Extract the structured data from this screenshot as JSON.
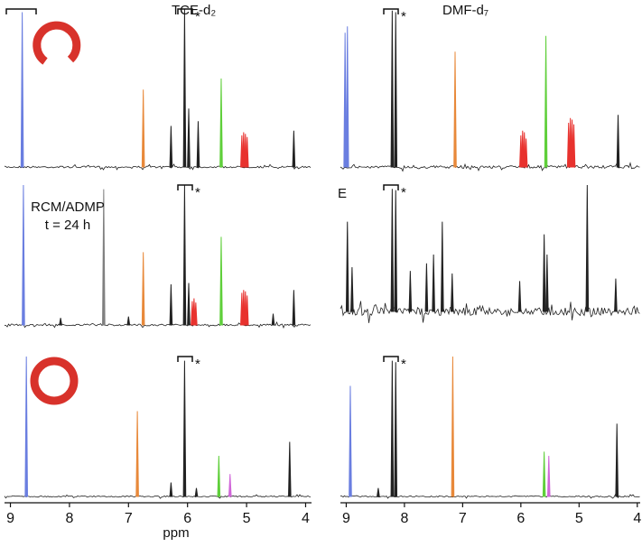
{
  "chart_data": [
    {
      "type": "spectrum",
      "title": "TCE-d₂",
      "annotation": "*",
      "xlim": [
        9.1,
        3.9
      ],
      "ylim": [
        0,
        1
      ],
      "series": [
        {
          "color": "#6a7ee0",
          "x": [
            8.8
          ],
          "values": [
            0.98
          ]
        },
        {
          "color": "#e8893a",
          "x": [
            6.75
          ],
          "values": [
            0.49
          ]
        },
        {
          "color": "#e8322e",
          "x": [
            5.08,
            5.05,
            5.02,
            4.99
          ],
          "values": [
            0.2,
            0.22,
            0.21,
            0.19
          ]
        },
        {
          "color": "#5fcf3a",
          "x": [
            5.43
          ],
          "values": [
            0.56
          ]
        },
        {
          "color": "#222222",
          "x": [
            6.28,
            6.05,
            5.98,
            5.82,
            4.2
          ],
          "values": [
            0.26,
            1.0,
            0.37,
            0.29,
            0.23
          ]
        }
      ]
    },
    {
      "type": "spectrum",
      "title": "DMF-d₇",
      "annotation": "*",
      "xlim": [
        9.1,
        3.95
      ],
      "ylim": [
        0,
        1
      ],
      "series": [
        {
          "color": "#6a7ee0",
          "x": [
            9.02,
            8.98
          ],
          "values": [
            0.85,
            0.89
          ]
        },
        {
          "color": "#222222",
          "x": [
            8.21,
            8.15,
            4.33
          ],
          "values": [
            0.99,
            0.98,
            0.33
          ]
        },
        {
          "color": "#e8893a",
          "x": [
            7.13
          ],
          "values": [
            0.73
          ]
        },
        {
          "color": "#e8322e",
          "x": [
            6.0,
            5.97,
            5.94,
            5.91,
            5.18,
            5.15,
            5.12,
            5.09
          ],
          "values": [
            0.2,
            0.23,
            0.22,
            0.18,
            0.28,
            0.31,
            0.3,
            0.27
          ]
        },
        {
          "color": "#5fcf3a",
          "x": [
            5.57
          ],
          "values": [
            0.83
          ]
        }
      ]
    },
    {
      "type": "spectrum",
      "label_lines": [
        "RCM/ADMP",
        "t = 24 h"
      ],
      "annotation": "*",
      "xlim": [
        9.1,
        3.9
      ],
      "ylim": [
        0,
        1
      ],
      "series": [
        {
          "color": "#6a7ee0",
          "x": [
            8.78
          ],
          "values": [
            1.0
          ]
        },
        {
          "color": "#808080",
          "x": [
            7.42
          ],
          "values": [
            0.97
          ]
        },
        {
          "color": "#e8893a",
          "x": [
            6.75
          ],
          "values": [
            0.52
          ]
        },
        {
          "color": "#e8322e",
          "x": [
            5.92,
            5.89,
            5.86,
            5.08,
            5.05,
            5.02,
            4.99
          ],
          "values": [
            0.17,
            0.19,
            0.16,
            0.23,
            0.25,
            0.24,
            0.21
          ]
        },
        {
          "color": "#5fcf3a",
          "x": [
            5.43
          ],
          "values": [
            0.63
          ]
        },
        {
          "color": "#222222",
          "x": [
            8.15,
            7.0,
            6.28,
            6.05,
            5.98,
            4.55,
            4.2
          ],
          "values": [
            0.05,
            0.06,
            0.29,
            1.0,
            0.3,
            0.08,
            0.25
          ]
        }
      ]
    },
    {
      "type": "spectrum",
      "title": "E",
      "annotation": "*",
      "xlim": [
        9.1,
        3.95
      ],
      "ylim": [
        0,
        1
      ],
      "series": [
        {
          "color": "#222222",
          "x": [
            8.98,
            8.9,
            8.21,
            8.15,
            7.9,
            7.62,
            7.5,
            7.35,
            7.18,
            6.02,
            5.6,
            5.55,
            4.86,
            4.37
          ],
          "values": [
            0.71,
            0.35,
            0.97,
            0.96,
            0.32,
            0.38,
            0.45,
            0.71,
            0.3,
            0.24,
            0.61,
            0.45,
            1.0,
            0.26
          ]
        }
      ]
    },
    {
      "type": "spectrum",
      "annotation": "*",
      "xlabel": "ppm",
      "xlim": [
        9.1,
        3.9
      ],
      "ylim": [
        0,
        1
      ],
      "xticks": [
        9,
        8,
        7,
        6,
        5,
        4
      ],
      "series": [
        {
          "color": "#6a7ee0",
          "x": [
            8.73
          ],
          "values": [
            1.0
          ]
        },
        {
          "color": "#e8893a",
          "x": [
            6.85
          ],
          "values": [
            0.61
          ]
        },
        {
          "color": "#5fcf3a",
          "x": [
            5.47
          ],
          "values": [
            0.29
          ]
        },
        {
          "color": "#d066d8",
          "x": [
            5.28
          ],
          "values": [
            0.16
          ]
        },
        {
          "color": "#222222",
          "x": [
            6.28,
            6.05,
            5.85,
            4.27
          ],
          "values": [
            0.1,
            0.97,
            0.06,
            0.39
          ]
        }
      ]
    },
    {
      "type": "spectrum",
      "annotation": "*",
      "xlim": [
        9.1,
        3.95
      ],
      "ylim": [
        0,
        1
      ],
      "xticks": [
        9,
        8,
        7,
        6,
        5,
        4
      ],
      "series": [
        {
          "color": "#6a7ee0",
          "x": [
            8.93
          ],
          "values": [
            0.79
          ]
        },
        {
          "color": "#222222",
          "x": [
            8.21,
            8.15,
            8.45,
            4.35
          ],
          "values": [
            0.97,
            0.96,
            0.06,
            0.52
          ]
        },
        {
          "color": "#e8893a",
          "x": [
            7.17
          ],
          "values": [
            1.0
          ]
        },
        {
          "color": "#5fcf3a",
          "x": [
            5.6
          ],
          "values": [
            0.32
          ]
        },
        {
          "color": "#d066d8",
          "x": [
            5.52
          ],
          "values": [
            0.29
          ]
        }
      ]
    }
  ]
}
